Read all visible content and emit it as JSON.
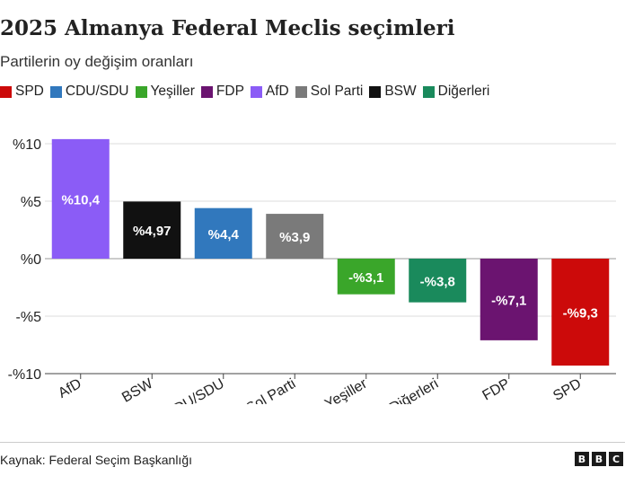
{
  "header": {
    "title": "2025 Almanya Federal Meclis seçimleri",
    "subtitle": "Partilerin oy değişim oranları"
  },
  "legend": [
    {
      "label": "SPD",
      "color": "#cc0a0a"
    },
    {
      "label": "CDU/SDU",
      "color": "#3178bd"
    },
    {
      "label": "Yeşiller",
      "color": "#3aa62a"
    },
    {
      "label": "FDP",
      "color": "#6b1470"
    },
    {
      "label": "AfD",
      "color": "#8b5cf6"
    },
    {
      "label": "Sol Parti",
      "color": "#7a7a7a"
    },
    {
      "label": "BSW",
      "color": "#111111"
    },
    {
      "label": "Diğerleri",
      "color": "#1a8a5c"
    }
  ],
  "chart_data": {
    "type": "bar",
    "categories": [
      "AfD",
      "BSW",
      "CDU/SDU",
      "Sol Parti",
      "Yeşiller",
      "Diğerleri",
      "FDP",
      "SPD"
    ],
    "values": [
      10.4,
      4.97,
      4.4,
      3.9,
      -3.1,
      -3.8,
      -7.1,
      -9.3
    ],
    "data_labels": [
      "%10,4",
      "%4,97",
      "%4,4",
      "%3,9",
      "-%3,1",
      "-%3,8",
      "-%7,1",
      "-%9,3"
    ],
    "colors": [
      "#8b5cf6",
      "#111111",
      "#3178bd",
      "#7a7a7a",
      "#3aa62a",
      "#1a8a5c",
      "#6b1470",
      "#cc0a0a"
    ],
    "yticks": [
      10,
      5,
      0,
      -5,
      -10
    ],
    "ytick_labels": [
      "%10",
      "%5",
      "%0",
      "-%5",
      "-%10"
    ],
    "ylim": [
      -10,
      10
    ],
    "grid": "horizontal",
    "legend_placement": "top-left"
  },
  "footer": {
    "source": "Kaynak: Federal Seçim Başkanlığı",
    "logo_letters": [
      "B",
      "B",
      "C"
    ]
  }
}
